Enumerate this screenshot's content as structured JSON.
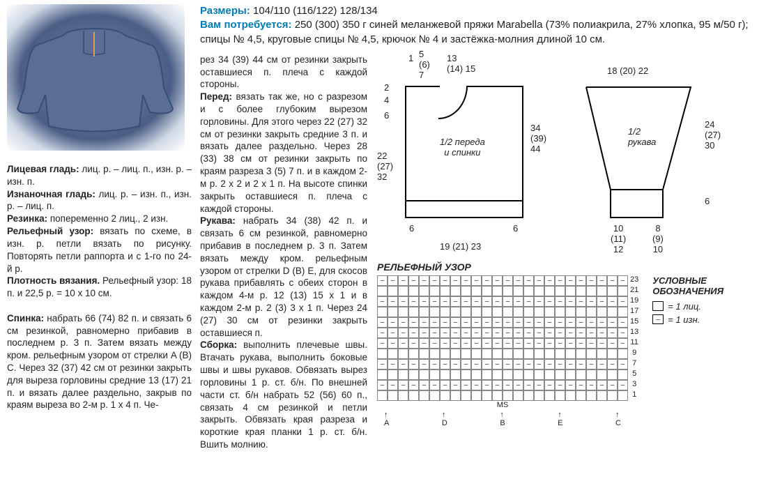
{
  "header": {
    "sizes_label": "Размеры:",
    "sizes_value": " 104/110 (116/122) 128/134",
    "need_label": "Вам потребуется:",
    "need_value": " 250 (300) 350 г синей меланжевой пряжи Marabella (73% полиакрила, 27% хлопка, 95 м/50 г); спицы № 4,5, круговые спицы № 4,5, крючок № 4 и застёжка-молния длиной 10 см."
  },
  "left_text": {
    "p1b": "Лицевая гладь:",
    "p1": " лиц. р. – лиц. п., изн. р. – изн. п.",
    "p2b": "Изнаночная гладь:",
    "p2": " лиц. р. – изн. п., изн. р. – лиц. п.",
    "p3b": "Резинка:",
    "p3": " попеременно 2 лиц., 2 изн.",
    "p4b": "Рельефный узор:",
    "p4": " вязать по схеме, в изн. р. петли вязать по рисунку. Повторять петли раппорта и с 1-го по 24-й р.",
    "p5b": "Плотность вязания.",
    "p5": " Рельефный узор: 18 п. и 22,5 р. = 10 х 10 см.",
    "p6b": "Спинка:",
    "p6": " набрать 66 (74) 82 п. и связать 6 см резинкой, равномерно прибавив в последнем р. 3 п. Затем вязать между кром. рельефным узором от стрелки A (B) C. Через 32 (37) 42 см от резинки закрыть для выреза горловины средние 13 (17) 21 п. и вязать далее раздельно, закрыв по краям выреза во 2-м р. 1 х 4 п. Че-"
  },
  "mid_text": {
    "p1": "рез 34 (39) 44 см от резинки закрыть оставшиеся п. плеча с каждой стороны.",
    "p2b": "Перед:",
    "p2": " вязать так же, но с разрезом и с более глубоким вырезом горловины. Для этого через 22 (27) 32 см от резинки закрыть средние 3 п. и вязать далее раздельно. Через 28 (33) 38 см от резинки закрыть по краям разреза 3 (5) 7 п. и в каждом 2-м р. 2 х 2 и 2 х 1 п. На высоте спинки закрыть оставшиеся п. плеча с каждой стороны.",
    "p3b": "Рукава:",
    "p3": " набрать 34 (38) 42 п. и связать 6 см резинкой, равномерно прибавив в последнем р. 3 п. Затем вязать между кром. рельефным узором от стрелки D (B) E, для скосов рукава прибавлять с обеих сторон в каждом 4-м р. 12 (13) 15 х 1 и в каждом 2-м р. 2 (3) 3 х 1 п. Через 24 (27) 30 см от резинки закрыть оставшиеся п.",
    "p4b": "Сборка:",
    "p4": " выполнить плечевые швы. Втачать рукава, выполнить боковые швы и швы рукавов. Обвязать вырез горловины 1 р. ст. б/н. По внешней части ст. б/н набрать 52 (56) 60 п., связать 4 см резинкой и петли закрыть. Обвязать края разреза и короткие края планки 1 р. ст. б/н. Вшить молнию."
  },
  "schematic": {
    "body": {
      "top_nums": {
        "n1": "1",
        "n567": "5\n(6)\n7",
        "n13": "13\n(14) 15"
      },
      "left_small": {
        "n2": "2",
        "n4": "4",
        "n6": "6"
      },
      "left_big": "22\n(27)\n32",
      "center": "1/2 переда\nи спинки",
      "right": "34\n(39)\n44",
      "bottom_l": "6",
      "bottom_r": "6",
      "bottom_center": "19 (21) 23"
    },
    "sleeve": {
      "top": "18 (20) 22",
      "center": "1/2\nрукава",
      "right_top": "24\n(27)\n30",
      "right_bot": "6",
      "bot_l": "10\n(11)\n12",
      "bot_r": "8\n(9)\n10"
    }
  },
  "chart": {
    "title": "РЕЛЬЕФНЫЙ УЗОР",
    "rows": [
      23,
      21,
      19,
      17,
      15,
      13,
      11,
      9,
      7,
      5,
      3,
      1
    ],
    "dash_rows": [
      23,
      19,
      15,
      13,
      11,
      7,
      3
    ],
    "arrows": "A    D        B        E    C",
    "ms": "MS"
  },
  "legend": {
    "title": "УСЛОВНЫЕ ОБОЗНАЧЕНИЯ",
    "i1": "= 1 лиц.",
    "i2": "= 1 изн."
  }
}
